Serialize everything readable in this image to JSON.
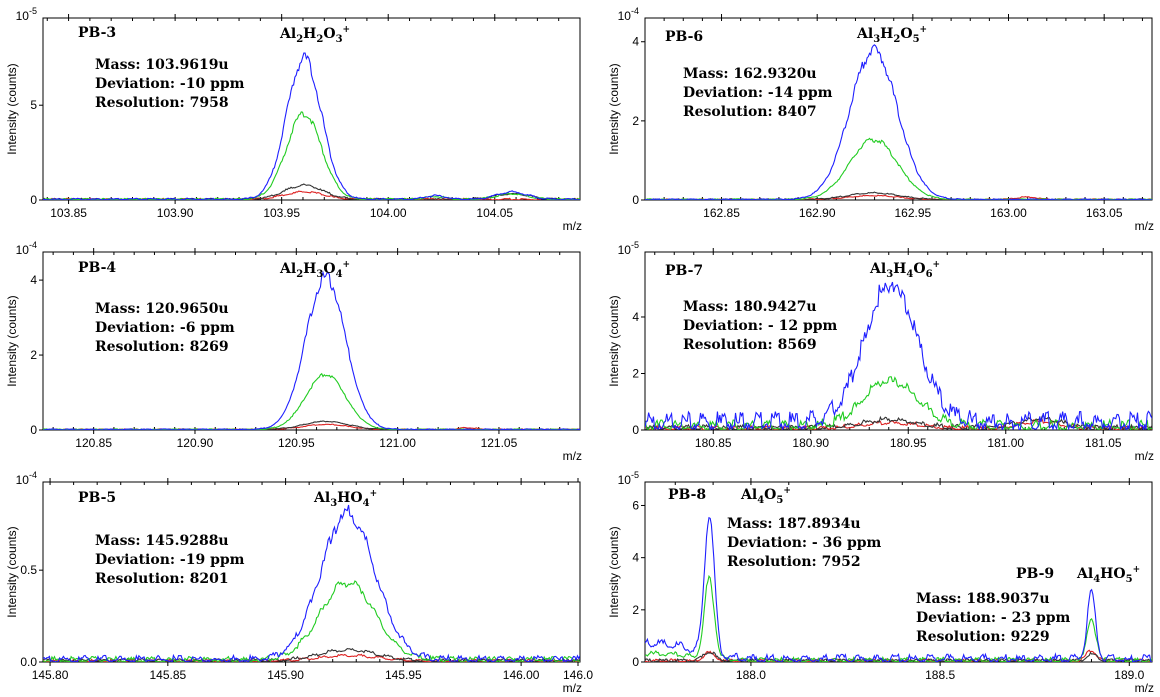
{
  "chart_data": [
    {
      "type": "line",
      "sample": "PB-3",
      "formula": {
        "parts": [
          [
            "Al",
            "n"
          ],
          [
            "2",
            "sub"
          ],
          [
            "H",
            "n"
          ],
          [
            "2",
            "sub"
          ],
          [
            "O",
            "n"
          ],
          [
            "3",
            "sub"
          ],
          [
            "+",
            "sup"
          ]
        ]
      },
      "annotations": [
        "Mass: 103.9619u",
        "Deviation: -10 ppm",
        "Resolution: 7958"
      ],
      "ylabel": "Intensity (counts)",
      "xlabel": "m/z",
      "yscale_label": "10-5",
      "xlim": [
        103.838,
        104.09
      ],
      "ylim": [
        0,
        9.6
      ],
      "xticks": [
        "103.85",
        "103.90",
        "103.95",
        "104.00",
        "104.05"
      ],
      "xtick_values": [
        103.85,
        103.9,
        103.95,
        104.0,
        104.05
      ],
      "yticks": [
        "0",
        "5"
      ],
      "ytick_values": [
        0,
        5
      ],
      "series": [
        {
          "color": "#1f1fff",
          "peaks": [
            {
              "center": 103.9605,
              "height": 7.6,
              "width": 0.0082
            },
            {
              "center": 104.022,
              "height": 0.2,
              "width": 0.005
            },
            {
              "center": 104.058,
              "height": 0.4,
              "width": 0.007
            }
          ],
          "noise": 0.03
        },
        {
          "color": "#22cc22",
          "peaks": [
            {
              "center": 103.9605,
              "height": 4.6,
              "width": 0.0082
            },
            {
              "center": 104.022,
              "height": 0.15,
              "width": 0.005
            },
            {
              "center": 104.058,
              "height": 0.3,
              "width": 0.007
            }
          ],
          "noise": 0.03
        },
        {
          "color": "#333333",
          "peaks": [
            {
              "center": 103.9605,
              "height": 0.75,
              "width": 0.009
            },
            {
              "center": 104.058,
              "height": 0.3,
              "width": 0.008
            }
          ],
          "noise": 0.03
        },
        {
          "color": "#dd2222",
          "peaks": [
            {
              "center": 103.9605,
              "height": 0.4,
              "width": 0.009
            }
          ],
          "noise": 0.03
        }
      ]
    },
    {
      "type": "line",
      "sample": "PB-6",
      "formula": {
        "parts": [
          [
            "Al",
            "n"
          ],
          [
            "3",
            "sub"
          ],
          [
            "H",
            "n"
          ],
          [
            "2",
            "sub"
          ],
          [
            "O",
            "n"
          ],
          [
            "5",
            "sub"
          ],
          [
            "+",
            "sup"
          ]
        ]
      },
      "annotations": [
        "Mass: 162.9320u",
        "Deviation: -14 ppm",
        "Resolution: 8407"
      ],
      "ylabel": "Intensity (counts)",
      "xlabel": "m/z",
      "yscale_label": "10-4",
      "xlim": [
        162.81,
        163.075
      ],
      "ylim": [
        0,
        4.6
      ],
      "xticks": [
        "162.85",
        "162.90",
        "162.95",
        "163.00",
        "163.05"
      ],
      "xtick_values": [
        162.85,
        162.9,
        162.95,
        163.0,
        163.05
      ],
      "yticks": [
        "0",
        "2",
        "4"
      ],
      "ytick_values": [
        0,
        2,
        4
      ],
      "series": [
        {
          "color": "#1f1fff",
          "peaks": [
            {
              "center": 162.9295,
              "height": 3.85,
              "width": 0.0125
            }
          ],
          "noise": 0.01
        },
        {
          "color": "#22cc22",
          "peaks": [
            {
              "center": 162.9295,
              "height": 1.55,
              "width": 0.0125
            }
          ],
          "noise": 0.01
        },
        {
          "color": "#333333",
          "peaks": [
            {
              "center": 162.9295,
              "height": 0.17,
              "width": 0.013
            }
          ],
          "noise": 0.01
        },
        {
          "color": "#dd2222",
          "peaks": [
            {
              "center": 162.9295,
              "height": 0.1,
              "width": 0.013
            },
            {
              "center": 163.01,
              "height": 0.06,
              "width": 0.006
            }
          ],
          "noise": 0.01
        }
      ]
    },
    {
      "type": "line",
      "sample": "PB-4",
      "formula": {
        "parts": [
          [
            "Al",
            "n"
          ],
          [
            "2",
            "sub"
          ],
          [
            "H",
            "n"
          ],
          [
            "3",
            "sub"
          ],
          [
            "O",
            "n"
          ],
          [
            "4",
            "sub"
          ],
          [
            "+",
            "sup"
          ]
        ]
      },
      "annotations": [
        "Mass: 120.9650u",
        "Deviation: -6 ppm",
        "Resolution: 8269"
      ],
      "ylabel": "Intensity (counts)",
      "xlabel": "m/z",
      "yscale_label": "10-4",
      "xlim": [
        120.825,
        121.09
      ],
      "ylim": [
        0,
        4.75
      ],
      "xticks": [
        "120.85",
        "120.90",
        "120.95",
        "121.00",
        "121.05"
      ],
      "xtick_values": [
        120.85,
        120.9,
        120.95,
        121.0,
        121.05
      ],
      "yticks": [
        "0",
        "2",
        "4"
      ],
      "ytick_values": [
        0,
        2,
        4
      ],
      "series": [
        {
          "color": "#1f1fff",
          "peaks": [
            {
              "center": 120.9645,
              "height": 4.15,
              "width": 0.0098
            }
          ],
          "noise": 0.01
        },
        {
          "color": "#22cc22",
          "peaks": [
            {
              "center": 120.9645,
              "height": 1.5,
              "width": 0.0098
            }
          ],
          "noise": 0.01
        },
        {
          "color": "#333333",
          "peaks": [
            {
              "center": 120.9645,
              "height": 0.22,
              "width": 0.011
            }
          ],
          "noise": 0.01
        },
        {
          "color": "#dd2222",
          "peaks": [
            {
              "center": 120.9645,
              "height": 0.14,
              "width": 0.011
            },
            {
              "center": 121.035,
              "height": 0.05,
              "width": 0.004
            }
          ],
          "noise": 0.01
        }
      ]
    },
    {
      "type": "line",
      "sample": "PB-7",
      "formula": {
        "parts": [
          [
            "Al",
            "n"
          ],
          [
            "3",
            "sub"
          ],
          [
            "H",
            "n"
          ],
          [
            "4",
            "sub"
          ],
          [
            "O",
            "n"
          ],
          [
            "6",
            "sub"
          ],
          [
            "+",
            "sup"
          ]
        ]
      },
      "annotations": [
        "Mass: 180.9427u",
        "Deviation: - 12 ppm",
        "Resolution: 8569"
      ],
      "ylabel": "Intensity (counts)",
      "xlabel": "m/z",
      "yscale_label": "10-5",
      "xlim": [
        180.815,
        181.075
      ],
      "ylim": [
        0,
        6.3
      ],
      "xticks": [
        "180.85",
        "180.90",
        "180.95",
        "181.00",
        "181.05"
      ],
      "xtick_values": [
        180.85,
        180.9,
        180.95,
        181.0,
        181.05
      ],
      "yticks": [
        "0",
        "2",
        "4"
      ],
      "ytick_values": [
        0,
        2,
        4
      ],
      "series": [
        {
          "color": "#1f1fff",
          "peaks": [
            {
              "center": 180.941,
              "height": 5.0,
              "width": 0.0135
            }
          ],
          "noise": 0.22
        },
        {
          "color": "#22cc22",
          "peaks": [
            {
              "center": 180.941,
              "height": 1.65,
              "width": 0.0135
            }
          ],
          "noise": 0.12
        },
        {
          "color": "#333333",
          "peaks": [
            {
              "center": 180.941,
              "height": 0.3,
              "width": 0.014
            },
            {
              "center": 181.018,
              "height": 0.35,
              "width": 0.01
            }
          ],
          "noise": 0.06
        },
        {
          "color": "#dd2222",
          "peaks": [
            {
              "center": 180.941,
              "height": 0.2,
              "width": 0.014
            },
            {
              "center": 181.018,
              "height": 0.25,
              "width": 0.01
            }
          ],
          "noise": 0.05
        }
      ]
    },
    {
      "type": "line",
      "sample": "PB-5",
      "formula": {
        "parts": [
          [
            "Al",
            "n"
          ],
          [
            "3",
            "sub"
          ],
          [
            "HO",
            "n"
          ],
          [
            "4",
            "sub"
          ],
          [
            "+",
            "sup"
          ]
        ]
      },
      "annotations": [
        "Mass: 145.9288u",
        "Deviation: -19 ppm",
        "Resolution: 8201"
      ],
      "ylabel": "Intensity (counts)",
      "xlabel": "m/z",
      "yscale_label": "10-4",
      "xlim": [
        145.797,
        146.025
      ],
      "ylim": [
        0,
        0.98
      ],
      "xticks": [
        "145.80",
        "145.85",
        "145.90",
        "145.95",
        "146.00",
        "146.0"
      ],
      "xtick_values": [
        145.8,
        145.85,
        145.9,
        145.95,
        146.0,
        146.025
      ],
      "yticks": [
        "0.0",
        "0.5"
      ],
      "ytick_values": [
        0,
        0.5
      ],
      "series": [
        {
          "color": "#1f1fff",
          "peaks": [
            {
              "center": 145.9265,
              "height": 0.81,
              "width": 0.0115
            }
          ],
          "noise": 0.012
        },
        {
          "color": "#22cc22",
          "peaks": [
            {
              "center": 145.9265,
              "height": 0.43,
              "width": 0.0115
            }
          ],
          "noise": 0.01
        },
        {
          "color": "#333333",
          "peaks": [
            {
              "center": 145.9265,
              "height": 0.06,
              "width": 0.012
            }
          ],
          "noise": 0.006
        },
        {
          "color": "#dd2222",
          "peaks": [
            {
              "center": 145.9265,
              "height": 0.03,
              "width": 0.012
            }
          ],
          "noise": 0.005
        }
      ]
    },
    {
      "type": "line",
      "sample": "PB-8",
      "sample2": "PB-9",
      "formula": {
        "parts": [
          [
            "Al",
            "n"
          ],
          [
            "4",
            "sub"
          ],
          [
            "O",
            "n"
          ],
          [
            "5",
            "sub"
          ],
          [
            "+",
            "sup"
          ]
        ]
      },
      "formula2": {
        "parts": [
          [
            "Al",
            "n"
          ],
          [
            "4",
            "sub"
          ],
          [
            "HO",
            "n"
          ],
          [
            "5",
            "sub"
          ],
          [
            "+",
            "sup"
          ]
        ]
      },
      "annotations": [
        "Mass: 187.8934u",
        "Deviation: - 36 ppm",
        "Resolution: 7952"
      ],
      "annotations2": [
        "Mass: 188.9037u",
        "Deviation: - 23 ppm",
        "Resolution: 9229"
      ],
      "ylabel": "Intensity (counts)",
      "xlabel": "m/z",
      "yscale_label": "10-5",
      "xlim": [
        187.72,
        189.06
      ],
      "ylim": [
        0,
        6.9
      ],
      "xticks": [
        "188.0",
        "188.5",
        "189.0"
      ],
      "xtick_values": [
        188.0,
        188.5,
        189.0
      ],
      "yticks": [
        "0",
        "2",
        "4",
        "6"
      ],
      "ytick_values": [
        0,
        2,
        4,
        6
      ],
      "series": [
        {
          "color": "#1f1fff",
          "peaks": [
            {
              "center": 187.89,
              "height": 5.5,
              "width": 0.013
            },
            {
              "center": 188.9,
              "height": 2.6,
              "width": 0.011
            },
            {
              "center": 187.75,
              "height": 0.6,
              "width": 0.09
            }
          ],
          "noise": 0.1
        },
        {
          "color": "#22cc22",
          "peaks": [
            {
              "center": 187.89,
              "height": 3.1,
              "width": 0.013
            },
            {
              "center": 188.9,
              "height": 1.7,
              "width": 0.011
            },
            {
              "center": 187.75,
              "height": 0.25,
              "width": 0.09
            }
          ],
          "noise": 0.06
        },
        {
          "color": "#333333",
          "peaks": [
            {
              "center": 187.89,
              "height": 0.35,
              "width": 0.015
            },
            {
              "center": 188.9,
              "height": 0.25,
              "width": 0.013
            }
          ],
          "noise": 0.04
        },
        {
          "color": "#dd2222",
          "peaks": [
            {
              "center": 187.89,
              "height": 0.3,
              "width": 0.015
            },
            {
              "center": 188.9,
              "height": 0.4,
              "width": 0.013
            }
          ],
          "noise": 0.04
        }
      ]
    }
  ]
}
